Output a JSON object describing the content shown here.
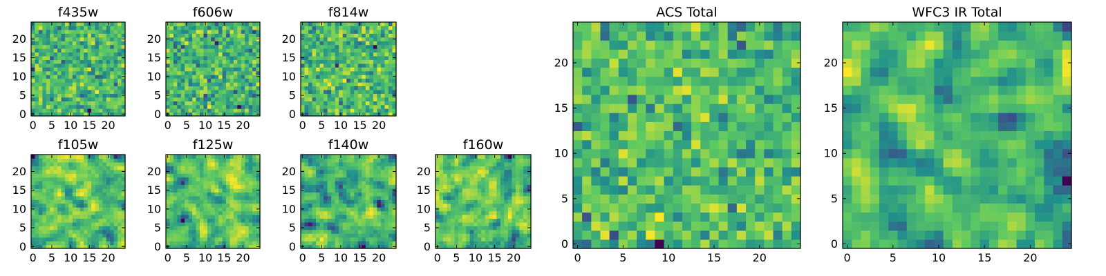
{
  "figure": {
    "colormap": "viridis",
    "colormap_stops": [
      "#440154",
      "#3b528b",
      "#21918c",
      "#5ec962",
      "#fde725"
    ]
  },
  "chart_data": [
    {
      "type": "heatmap",
      "title": "f435w",
      "grid_size": 25,
      "xlim": [
        -0.5,
        24.5
      ],
      "ylim": [
        -0.5,
        24.5
      ],
      "xticks": [
        0,
        5,
        10,
        15,
        20
      ],
      "yticks": [
        0,
        5,
        10,
        15,
        20
      ],
      "seed": 11,
      "smooth": 0
    },
    {
      "type": "heatmap",
      "title": "f606w",
      "grid_size": 25,
      "xlim": [
        -0.5,
        24.5
      ],
      "ylim": [
        -0.5,
        24.5
      ],
      "xticks": [
        0,
        5,
        10,
        15,
        20
      ],
      "yticks": [
        0,
        5,
        10,
        15,
        20
      ],
      "seed": 23,
      "smooth": 0
    },
    {
      "type": "heatmap",
      "title": "f814w",
      "grid_size": 25,
      "xlim": [
        -0.5,
        24.5
      ],
      "ylim": [
        -0.5,
        24.5
      ],
      "xticks": [
        0,
        5,
        10,
        15,
        20
      ],
      "yticks": [
        0,
        5,
        10,
        15,
        20
      ],
      "seed": 37,
      "smooth": 0
    },
    {
      "type": "heatmap",
      "title": "f105w",
      "grid_size": 25,
      "xlim": [
        -0.5,
        24.5
      ],
      "ylim": [
        -0.5,
        24.5
      ],
      "xticks": [
        0,
        5,
        10,
        15,
        20
      ],
      "yticks": [
        0,
        5,
        10,
        15,
        20
      ],
      "seed": 41,
      "smooth": 1
    },
    {
      "type": "heatmap",
      "title": "f125w",
      "grid_size": 25,
      "xlim": [
        -0.5,
        24.5
      ],
      "ylim": [
        -0.5,
        24.5
      ],
      "xticks": [
        0,
        5,
        10,
        15,
        20
      ],
      "yticks": [
        0,
        5,
        10,
        15,
        20
      ],
      "seed": 53,
      "smooth": 1
    },
    {
      "type": "heatmap",
      "title": "f140w",
      "grid_size": 25,
      "xlim": [
        -0.5,
        24.5
      ],
      "ylim": [
        -0.5,
        24.5
      ],
      "xticks": [
        0,
        5,
        10,
        15,
        20
      ],
      "yticks": [
        0,
        5,
        10,
        15,
        20
      ],
      "seed": 67,
      "smooth": 1
    },
    {
      "type": "heatmap",
      "title": "f160w",
      "grid_size": 25,
      "xlim": [
        -0.5,
        24.5
      ],
      "ylim": [
        -0.5,
        24.5
      ],
      "xticks": [
        0,
        5,
        10,
        15,
        20
      ],
      "yticks": [
        0,
        5,
        10,
        15,
        20
      ],
      "seed": 79,
      "smooth": 1
    },
    {
      "type": "heatmap",
      "title": "ACS Total",
      "grid_size": 25,
      "xlim": [
        -0.5,
        24.5
      ],
      "ylim": [
        -0.5,
        24.5
      ],
      "xticks": [
        0,
        5,
        10,
        15,
        20
      ],
      "yticks": [
        0,
        5,
        10,
        15,
        20
      ],
      "seed": 97,
      "smooth": 0
    },
    {
      "type": "heatmap",
      "title": "WFC3 IR Total",
      "grid_size": 25,
      "xlim": [
        -0.5,
        24.5
      ],
      "ylim": [
        -0.5,
        24.5
      ],
      "xticks": [
        0,
        5,
        10,
        15,
        20
      ],
      "yticks": [
        0,
        5,
        10,
        15,
        20
      ],
      "seed": 131,
      "smooth": 1
    }
  ]
}
